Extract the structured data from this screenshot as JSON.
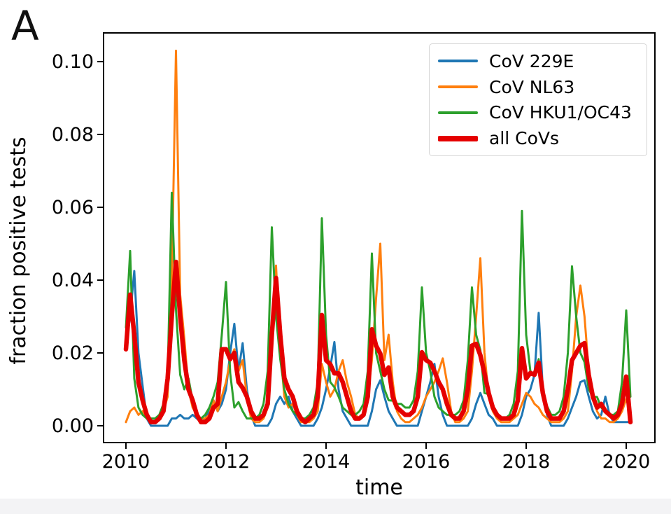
{
  "panel_label": "A",
  "axes": {
    "x_label": "time",
    "y_label": "fraction positive tests",
    "x_ticks": [
      {
        "label": "2010",
        "value": 2010
      },
      {
        "label": "2012",
        "value": 2012
      },
      {
        "label": "2014",
        "value": 2014
      },
      {
        "label": "2016",
        "value": 2016
      },
      {
        "label": "2018",
        "value": 2018
      },
      {
        "label": "2020",
        "value": 2020
      }
    ],
    "y_ticks": [
      {
        "label": "0.00",
        "value": 0.0
      },
      {
        "label": "0.02",
        "value": 0.02
      },
      {
        "label": "0.04",
        "value": 0.04
      },
      {
        "label": "0.06",
        "value": 0.06
      },
      {
        "label": "0.08",
        "value": 0.08
      },
      {
        "label": "0.10",
        "value": 0.1
      }
    ]
  },
  "chart_data": {
    "type": "line",
    "title": "",
    "xlabel": "time",
    "ylabel": "fraction positive tests",
    "x_start": "2010-01",
    "x_interval": "monthly",
    "x_end": "2020-02",
    "n_points": 122,
    "xlim": [
      2009.55,
      2020.57
    ],
    "ylim": [
      -0.0046,
      0.108
    ],
    "grid": false,
    "legend_position": "upper right",
    "series": [
      {
        "name": "CoV 229E",
        "color": "#1f77b4",
        "line_width": 3,
        "values": [
          0.022,
          0.03,
          0.0425,
          0.02,
          0.011,
          0.002,
          0,
          0,
          0,
          0,
          0,
          0.002,
          0.002,
          0.003,
          0.002,
          0.002,
          0.003,
          0.002,
          0.001,
          0.002,
          0.004,
          0.007,
          0.004,
          0.006,
          0.01,
          0.02,
          0.028,
          0.015,
          0.0227,
          0.01,
          0.003,
          0,
          0,
          0,
          0,
          0.002,
          0.006,
          0.008,
          0.006,
          0.008,
          0.004,
          0.002,
          0,
          0,
          0,
          0,
          0.002,
          0.005,
          0.01,
          0.016,
          0.023,
          0.01,
          0.004,
          0.002,
          0,
          0,
          0,
          0,
          0,
          0.004,
          0.01,
          0.0125,
          0.008,
          0.004,
          0.002,
          0,
          0,
          0,
          0,
          0,
          0,
          0.004,
          0.008,
          0.012,
          0.017,
          0.008,
          0.003,
          0,
          0,
          0,
          0,
          0,
          0,
          0.002,
          0.006,
          0.009,
          0.006,
          0.003,
          0.002,
          0,
          0,
          0,
          0,
          0,
          0,
          0.003,
          0.008,
          0.01,
          0.014,
          0.031,
          0.01,
          0.003,
          0,
          0,
          0,
          0,
          0.002,
          0.005,
          0.008,
          0.012,
          0.0125,
          0.008,
          0.004,
          0.002,
          0.003,
          0.008,
          0.003,
          0.001,
          0.001,
          0.001,
          0.001,
          0.001
        ]
      },
      {
        "name": "CoV NL63",
        "color": "#ff7f0e",
        "line_width": 3,
        "values": [
          0.001,
          0.004,
          0.005,
          0.003,
          0.004,
          0.002,
          0.001,
          0.001,
          0.002,
          0.004,
          0.008,
          0.04,
          0.103,
          0.036,
          0.024,
          0.01,
          0.005,
          0.003,
          0.002,
          0.002,
          0.003,
          0.007,
          0.004,
          0.008,
          0.012,
          0.018,
          0.021,
          0.015,
          0.018,
          0.008,
          0.002,
          0.001,
          0.001,
          0.002,
          0.005,
          0.022,
          0.044,
          0.021,
          0.008,
          0.005,
          0.006,
          0.003,
          0.001,
          0.001,
          0.001,
          0.002,
          0.004,
          0.017,
          0.012,
          0.008,
          0.01,
          0.015,
          0.018,
          0.012,
          0.008,
          0.003,
          0.002,
          0.003,
          0.008,
          0.018,
          0.035,
          0.05,
          0.018,
          0.025,
          0.012,
          0.004,
          0.002,
          0.001,
          0.001,
          0.002,
          0.003,
          0.005,
          0.008,
          0.01,
          0.012,
          0.015,
          0.0185,
          0.012,
          0.004,
          0.001,
          0.001,
          0.002,
          0.004,
          0.015,
          0.03,
          0.046,
          0.02,
          0.008,
          0.004,
          0.002,
          0.001,
          0.001,
          0.001,
          0.002,
          0.003,
          0.006,
          0.009,
          0.008,
          0.006,
          0.005,
          0.003,
          0.002,
          0.001,
          0.001,
          0.001,
          0.002,
          0.004,
          0.015,
          0.03,
          0.0385,
          0.03,
          0.015,
          0.008,
          0.004,
          0.002,
          0.002,
          0.001,
          0.001,
          0.002,
          0.004,
          0.0073,
          0.004
        ]
      },
      {
        "name": "CoV HKU1/OC43",
        "color": "#2ca02c",
        "line_width": 3,
        "values": [
          0.027,
          0.048,
          0.013,
          0.005,
          0.003,
          0.002,
          0.002,
          0.002,
          0.003,
          0.006,
          0.013,
          0.064,
          0.032,
          0.014,
          0.01,
          0.013,
          0.007,
          0.003,
          0.002,
          0.003,
          0.005,
          0.008,
          0.012,
          0.025,
          0.0395,
          0.0144,
          0.005,
          0.0065,
          0.004,
          0.002,
          0.002,
          0.002,
          0.003,
          0.006,
          0.015,
          0.0545,
          0.03,
          0.0183,
          0.01,
          0.006,
          0.004,
          0.003,
          0.002,
          0.002,
          0.003,
          0.005,
          0.012,
          0.057,
          0.025,
          0.012,
          0.0106,
          0.008,
          0.005,
          0.004,
          0.003,
          0.003,
          0.004,
          0.006,
          0.015,
          0.0473,
          0.02,
          0.015,
          0.01,
          0.007,
          0.0069,
          0.006,
          0.006,
          0.005,
          0.005,
          0.007,
          0.015,
          0.038,
          0.02,
          0.015,
          0.008,
          0.005,
          0.004,
          0.003,
          0.003,
          0.003,
          0.004,
          0.007,
          0.018,
          0.038,
          0.025,
          0.0208,
          0.009,
          0.0087,
          0.005,
          0.003,
          0.002,
          0.002,
          0.003,
          0.006,
          0.015,
          0.059,
          0.025,
          0.015,
          0.014,
          0.0183,
          0.008,
          0.0054,
          0.003,
          0.003,
          0.004,
          0.008,
          0.02,
          0.0438,
          0.03,
          0.02,
          0.0175,
          0.01,
          0.008,
          0.0079,
          0.005,
          0.004,
          0.003,
          0.003,
          0.004,
          0.012,
          0.0317,
          0.008
        ]
      },
      {
        "name": "all CoVs",
        "color": "#e50000",
        "line_width": 6.5,
        "values": [
          0.021,
          0.036,
          0.025,
          0.012,
          0.007,
          0.003,
          0.001,
          0.001,
          0.002,
          0.004,
          0.013,
          0.03,
          0.045,
          0.03,
          0.018,
          0.01,
          0.007,
          0.003,
          0.001,
          0.001,
          0.002,
          0.005,
          0.006,
          0.021,
          0.021,
          0.0183,
          0.02,
          0.012,
          0.0104,
          0.008,
          0.004,
          0.002,
          0.002,
          0.003,
          0.006,
          0.025,
          0.0406,
          0.025,
          0.0131,
          0.01,
          0.008,
          0.004,
          0.002,
          0.001,
          0.002,
          0.003,
          0.008,
          0.0304,
          0.018,
          0.0169,
          0.0144,
          0.0144,
          0.012,
          0.008,
          0.004,
          0.002,
          0.002,
          0.003,
          0.008,
          0.0265,
          0.022,
          0.0198,
          0.014,
          0.016,
          0.008,
          0.005,
          0.004,
          0.003,
          0.003,
          0.004,
          0.008,
          0.0202,
          0.018,
          0.0173,
          0.015,
          0.012,
          0.01,
          0.006,
          0.003,
          0.002,
          0.002,
          0.004,
          0.01,
          0.022,
          0.0225,
          0.0194,
          0.0144,
          0.009,
          0.005,
          0.003,
          0.002,
          0.002,
          0.002,
          0.003,
          0.007,
          0.0213,
          0.013,
          0.0145,
          0.014,
          0.0173,
          0.009,
          0.004,
          0.002,
          0.002,
          0.002,
          0.004,
          0.01,
          0.018,
          0.02,
          0.022,
          0.0227,
          0.014,
          0.008,
          0.005,
          0.006,
          0.004,
          0.003,
          0.002,
          0.003,
          0.006,
          0.0135,
          0.001
        ]
      }
    ]
  }
}
